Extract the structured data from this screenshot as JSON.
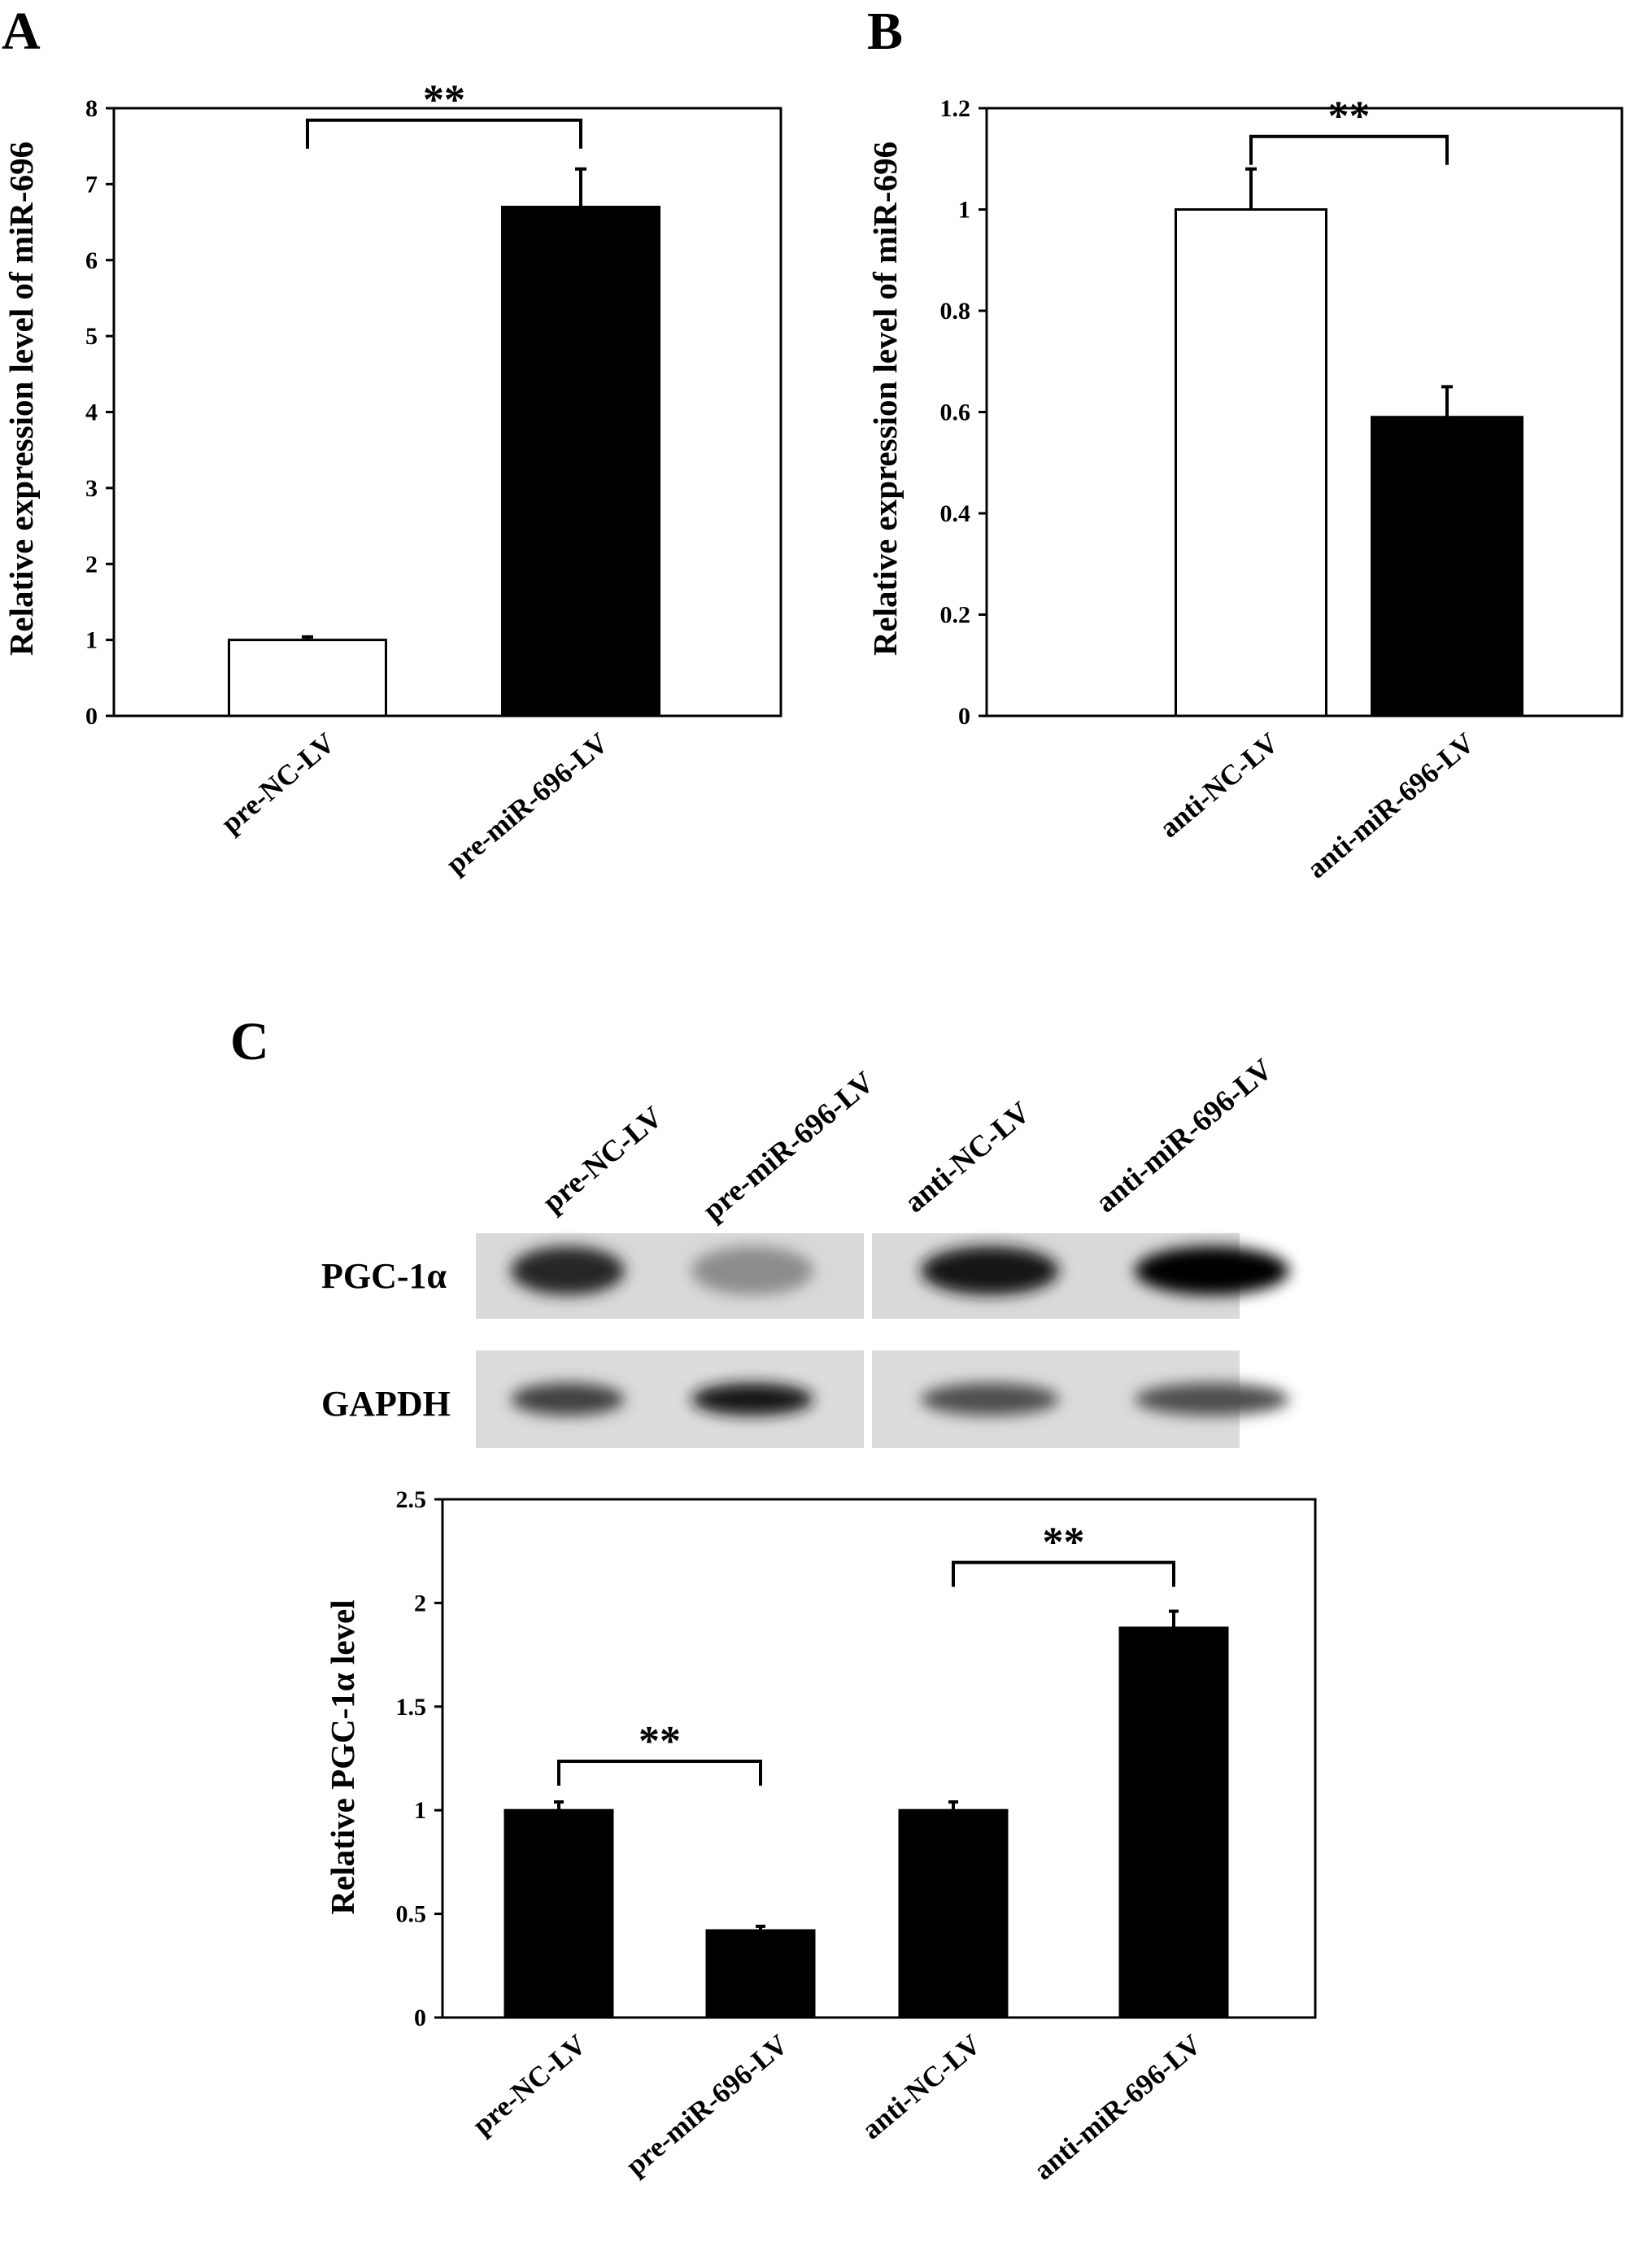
{
  "panels": {
    "a": "A",
    "b": "B",
    "c": "C"
  },
  "blot": {
    "lanes": [
      "pre-NC-LV",
      "pre-miR-696-LV",
      "anti-NC-LV",
      "anti-miR-696-LV"
    ],
    "rows": [
      {
        "label": "PGC-1α",
        "intensity": [
          0.85,
          0.45,
          0.9,
          1.0
        ]
      },
      {
        "label": "GAPDH",
        "intensity": [
          0.75,
          0.9,
          0.7,
          0.7
        ]
      }
    ]
  },
  "chart_data": [
    {
      "panel": "A",
      "type": "bar",
      "categories": [
        "pre-NC-LV",
        "pre-miR-696-LV"
      ],
      "values": [
        1.0,
        6.7
      ],
      "errors": [
        0.04,
        0.5
      ],
      "colors": [
        "#ffffff",
        "#000000"
      ],
      "ylabel": "Relative expression level of miR-696",
      "ylim": [
        0,
        8
      ],
      "yticks": [
        "0",
        "1",
        "2",
        "3",
        "4",
        "5",
        "6",
        "7",
        "8"
      ],
      "significance": [
        {
          "pair": [
            0,
            1
          ],
          "label": "**"
        }
      ]
    },
    {
      "panel": "B",
      "type": "bar",
      "categories": [
        "anti-NC-LV",
        "anti-miR-696-LV"
      ],
      "values": [
        1.0,
        0.59
      ],
      "errors": [
        0.08,
        0.06
      ],
      "colors": [
        "#ffffff",
        "#000000"
      ],
      "ylabel": "Relative expression level of miR-696",
      "ylim": [
        0,
        1.2
      ],
      "yticks": [
        "0",
        "0.2",
        "0.4",
        "0.6",
        "0.8",
        "1",
        "1.2"
      ],
      "significance": [
        {
          "pair": [
            0,
            1
          ],
          "label": "**"
        }
      ]
    },
    {
      "panel": "C",
      "type": "bar",
      "categories": [
        "pre-NC-LV",
        "pre-miR-696-LV",
        "anti-NC-LV",
        "anti-miR-696-LV"
      ],
      "values": [
        1.0,
        0.42,
        1.0,
        1.88
      ],
      "errors": [
        0.04,
        0.02,
        0.04,
        0.08
      ],
      "colors": [
        "#000000",
        "#000000",
        "#000000",
        "#000000"
      ],
      "ylabel": "Relative PGC-1α level",
      "ylim": [
        0,
        2.5
      ],
      "yticks": [
        "0",
        "0.5",
        "1",
        "1.5",
        "2",
        "2.5"
      ],
      "significance": [
        {
          "pair": [
            0,
            1
          ],
          "label": "**"
        },
        {
          "pair": [
            2,
            3
          ],
          "label": "**"
        }
      ]
    }
  ]
}
